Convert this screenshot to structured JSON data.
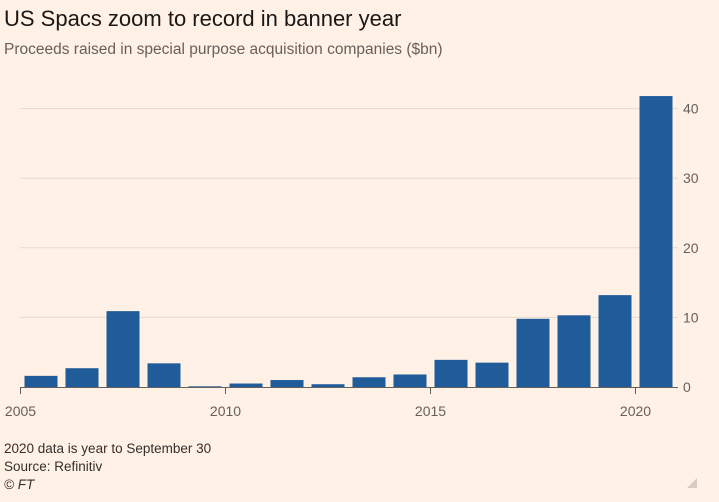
{
  "title": "US Spacs zoom to record in banner year",
  "subtitle": "Proceeds raised in special purpose acquisition companies ($bn)",
  "footer": {
    "note": "2020 data is year to September 30",
    "source": "Source: Refinitiv",
    "credit": "© FT"
  },
  "colors": {
    "bar": "#1f5c99",
    "background": "#fff1e5",
    "gridline": "#e6d9ce",
    "axis": "#66605c"
  },
  "chart_data": {
    "type": "bar",
    "x": [
      2005,
      2006,
      2007,
      2008,
      2009,
      2010,
      2011,
      2012,
      2013,
      2014,
      2015,
      2016,
      2017,
      2018,
      2019,
      2020
    ],
    "values": [
      1.6,
      2.7,
      10.9,
      3.4,
      0.1,
      0.5,
      1.0,
      0.4,
      1.4,
      1.8,
      3.9,
      3.5,
      9.8,
      10.3,
      13.2,
      41.8
    ],
    "xticks": [
      "2005",
      "2010",
      "2015",
      "2020"
    ],
    "yticks": [
      "0",
      "10",
      "20",
      "30",
      "40"
    ],
    "ylim": [
      0,
      44
    ],
    "y_axis_side": "right",
    "grid": true,
    "title": "US Spacs zoom to record in banner year",
    "xlabel": "",
    "ylabel": ""
  }
}
